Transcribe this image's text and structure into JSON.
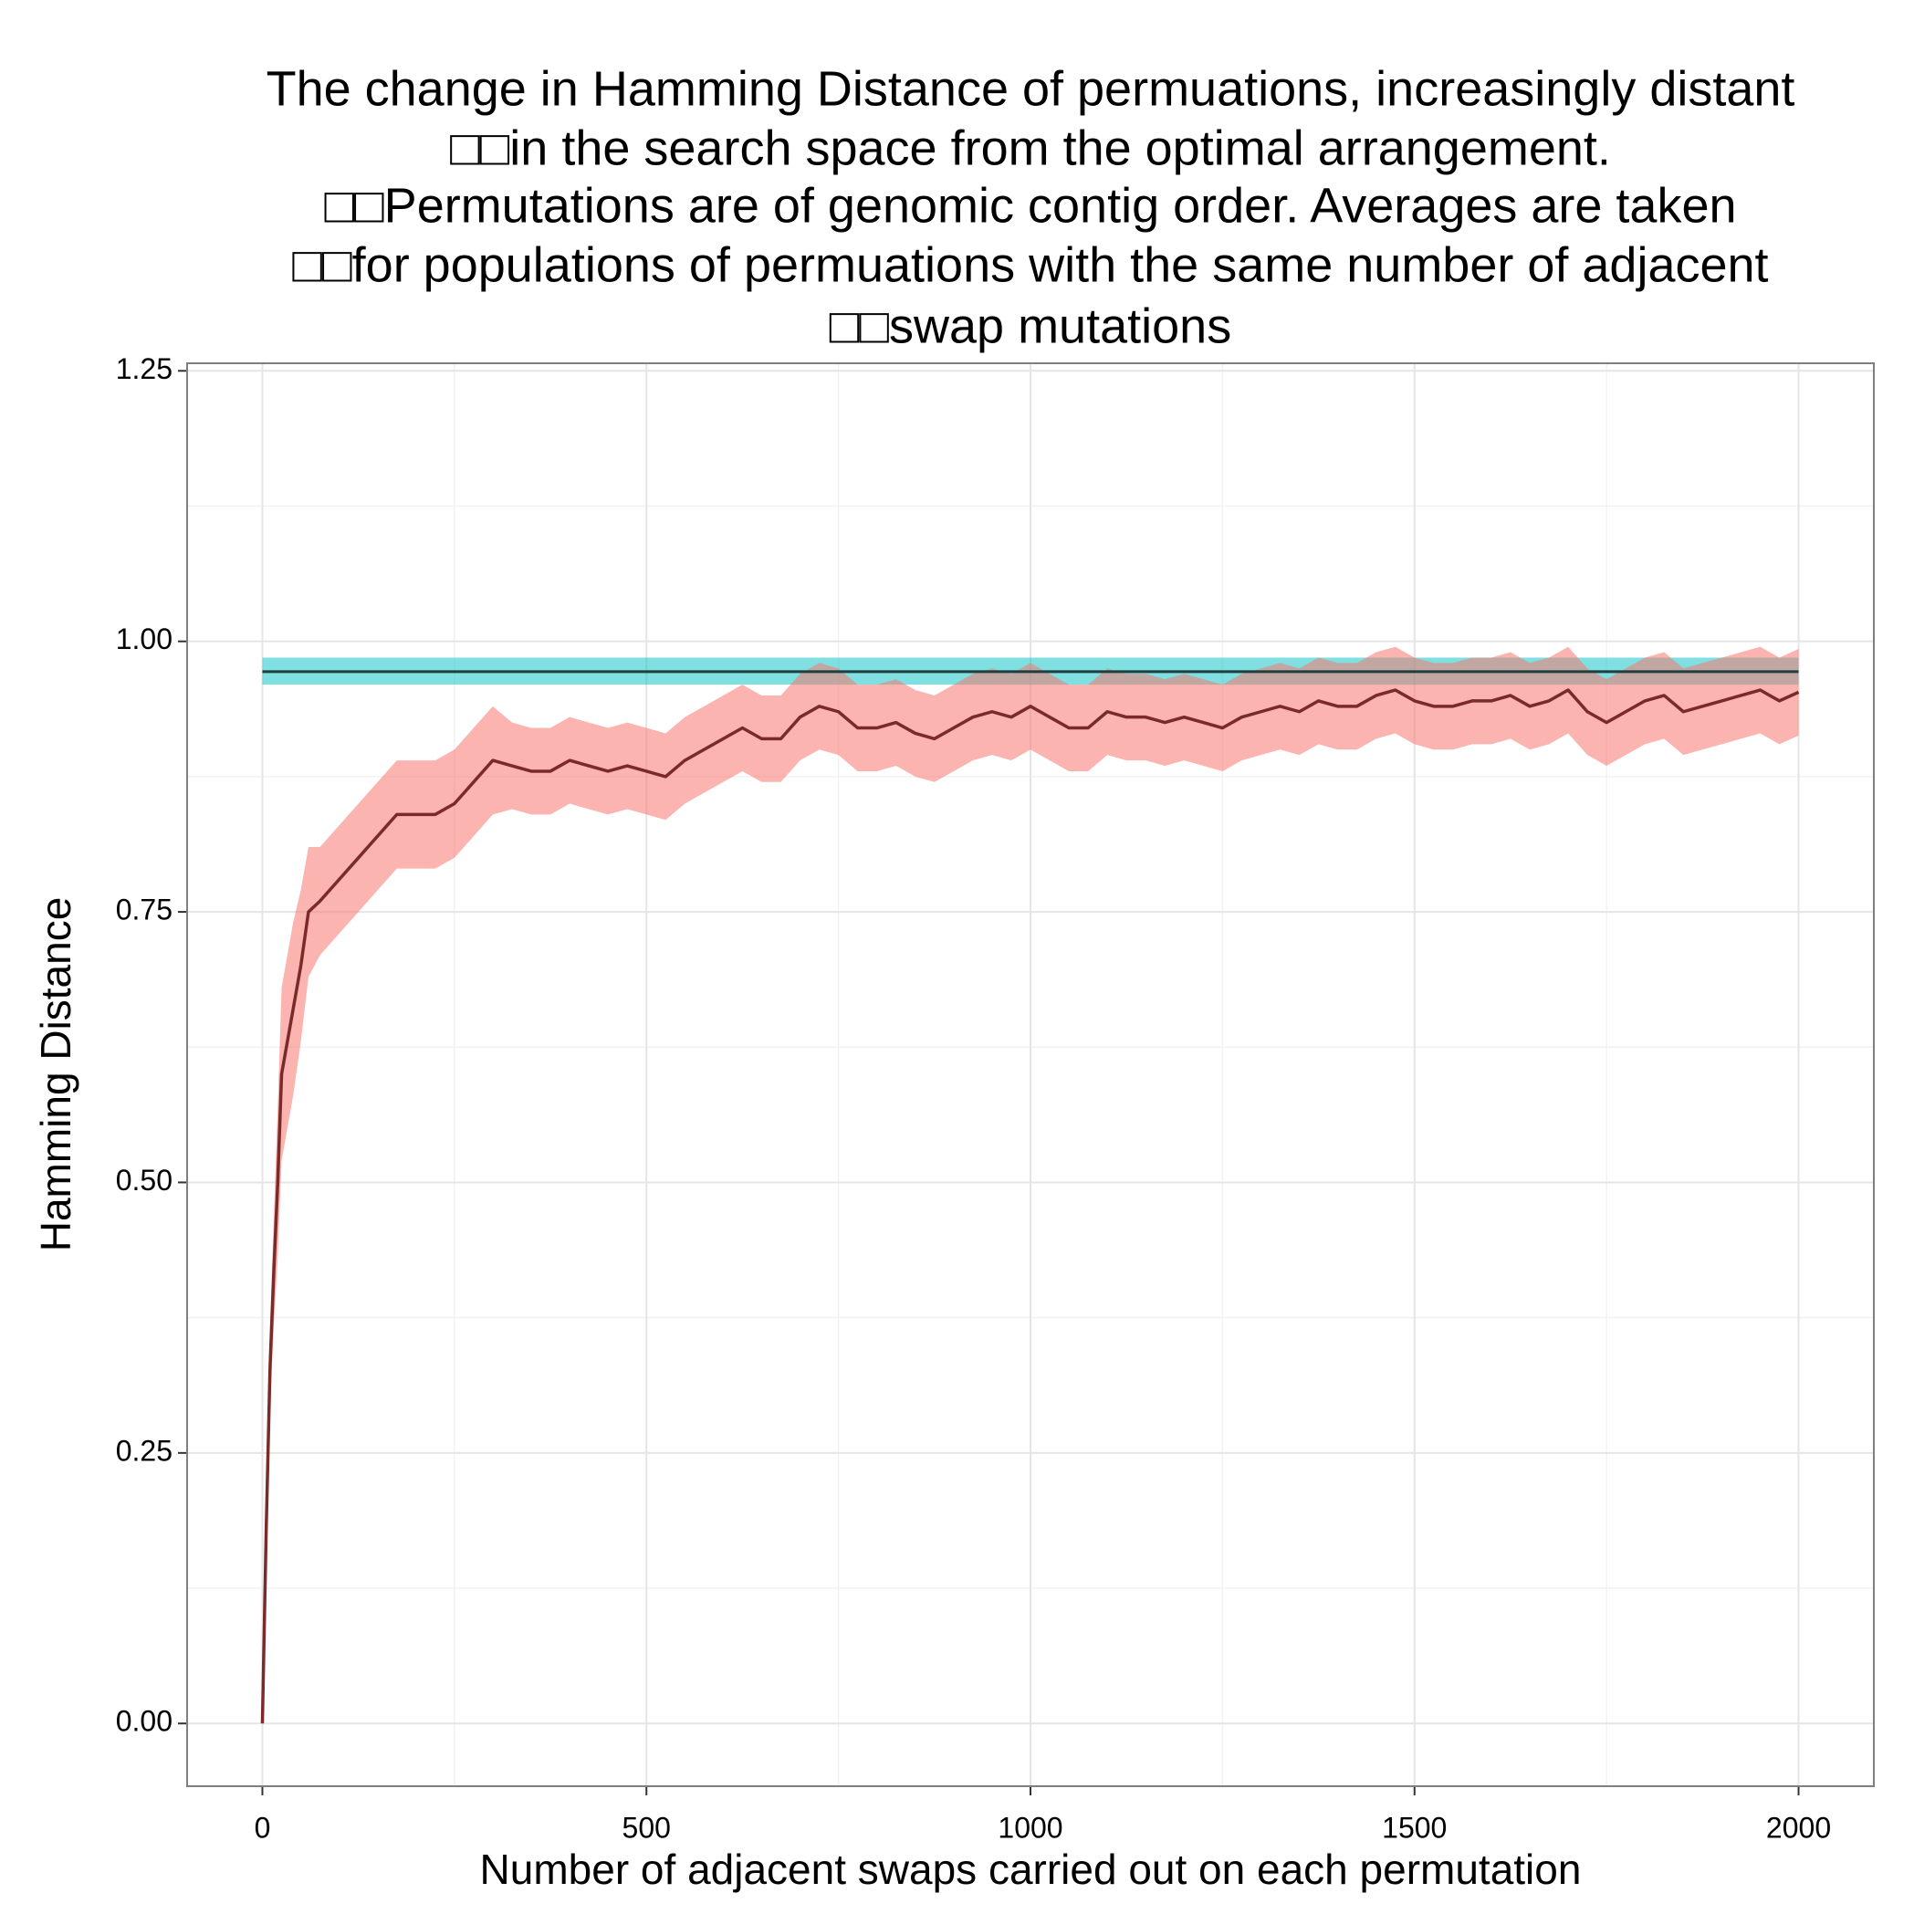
{
  "chart_data": {
    "type": "line",
    "title": [
      "The change in Hamming Distance of permuations, increasingly distant",
      "□□in the search space from the optimal arrangement.",
      "□□Permutations are of genomic contig order. Averages are taken",
      "□□for populations of permuations with the same number of adjacent",
      "□□swap mutations"
    ],
    "x_label": "Number of adjacent swaps carried out on each permutation",
    "y_label": "Hamming Distance",
    "xlim": [
      -98,
      2098
    ],
    "ylim": [
      -0.058,
      1.257
    ],
    "xticks": [
      0,
      500,
      1000,
      1500,
      2000
    ],
    "yticks": [
      {
        "value": 0,
        "label": "0.00"
      },
      {
        "value": 0.25,
        "label": "0.25"
      },
      {
        "value": 0.5,
        "label": "0.50"
      },
      {
        "value": 0.75,
        "label": "0.75"
      },
      {
        "value": 1,
        "label": "1.00"
      },
      {
        "value": 1.25,
        "label": "1.25"
      }
    ],
    "grid": true,
    "x": [
      0,
      5,
      10,
      15,
      20,
      25,
      30,
      40,
      50,
      60,
      75,
      100,
      125,
      150,
      175,
      200,
      225,
      250,
      275,
      300,
      325,
      350,
      375,
      400,
      425,
      450,
      475,
      500,
      525,
      550,
      575,
      600,
      625,
      650,
      675,
      700,
      725,
      750,
      775,
      800,
      825,
      850,
      875,
      900,
      925,
      950,
      975,
      1000,
      1025,
      1050,
      1075,
      1100,
      1125,
      1150,
      1175,
      1200,
      1225,
      1250,
      1275,
      1300,
      1325,
      1350,
      1375,
      1400,
      1425,
      1450,
      1475,
      1500,
      1525,
      1550,
      1575,
      1600,
      1625,
      1650,
      1675,
      1700,
      1725,
      1750,
      1775,
      1800,
      1825,
      1850,
      1875,
      1900,
      1925,
      1950,
      1975,
      2000
    ],
    "series": [
      {
        "color": "#7b2a2a",
        "band_color": "#f8766d",
        "values": [
          0,
          0.18,
          0.33,
          0.42,
          0.5,
          0.6,
          0.62,
          0.66,
          0.7,
          0.75,
          0.76,
          0.78,
          0.8,
          0.82,
          0.84,
          0.84,
          0.84,
          0.85,
          0.87,
          0.89,
          0.885,
          0.88,
          0.88,
          0.89,
          0.885,
          0.88,
          0.885,
          0.88,
          0.875,
          0.89,
          0.9,
          0.91,
          0.92,
          0.91,
          0.91,
          0.93,
          0.94,
          0.935,
          0.92,
          0.92,
          0.925,
          0.915,
          0.91,
          0.92,
          0.93,
          0.935,
          0.93,
          0.94,
          0.93,
          0.92,
          0.92,
          0.935,
          0.93,
          0.93,
          0.925,
          0.93,
          0.925,
          0.92,
          0.93,
          0.935,
          0.94,
          0.935,
          0.945,
          0.94,
          0.94,
          0.95,
          0.955,
          0.945,
          0.94,
          0.94,
          0.945,
          0.945,
          0.95,
          0.94,
          0.945,
          0.955,
          0.935,
          0.925,
          0.935,
          0.945,
          0.95,
          0.935,
          0.94,
          0.945,
          0.95,
          0.955,
          0.945,
          0.953
        ],
        "lower": [
          0,
          0.16,
          0.29,
          0.37,
          0.43,
          0.52,
          0.54,
          0.58,
          0.63,
          0.69,
          0.71,
          0.73,
          0.75,
          0.77,
          0.79,
          0.79,
          0.79,
          0.8,
          0.82,
          0.84,
          0.845,
          0.84,
          0.84,
          0.85,
          0.845,
          0.84,
          0.845,
          0.84,
          0.835,
          0.85,
          0.86,
          0.87,
          0.88,
          0.87,
          0.87,
          0.89,
          0.9,
          0.895,
          0.88,
          0.88,
          0.885,
          0.875,
          0.87,
          0.88,
          0.89,
          0.895,
          0.89,
          0.9,
          0.89,
          0.88,
          0.88,
          0.895,
          0.89,
          0.89,
          0.885,
          0.89,
          0.885,
          0.88,
          0.89,
          0.895,
          0.9,
          0.895,
          0.905,
          0.9,
          0.9,
          0.91,
          0.915,
          0.905,
          0.9,
          0.9,
          0.905,
          0.905,
          0.91,
          0.9,
          0.905,
          0.915,
          0.895,
          0.885,
          0.895,
          0.905,
          0.91,
          0.895,
          0.9,
          0.905,
          0.91,
          0.915,
          0.905,
          0.913
        ],
        "upper": [
          0,
          0.2,
          0.37,
          0.47,
          0.57,
          0.68,
          0.7,
          0.74,
          0.77,
          0.81,
          0.81,
          0.83,
          0.85,
          0.87,
          0.89,
          0.89,
          0.89,
          0.9,
          0.92,
          0.94,
          0.925,
          0.92,
          0.92,
          0.93,
          0.925,
          0.92,
          0.925,
          0.92,
          0.915,
          0.93,
          0.94,
          0.95,
          0.96,
          0.95,
          0.95,
          0.97,
          0.98,
          0.975,
          0.96,
          0.96,
          0.965,
          0.955,
          0.95,
          0.96,
          0.97,
          0.975,
          0.97,
          0.98,
          0.97,
          0.96,
          0.96,
          0.975,
          0.97,
          0.97,
          0.965,
          0.97,
          0.965,
          0.96,
          0.97,
          0.975,
          0.98,
          0.975,
          0.985,
          0.98,
          0.98,
          0.99,
          0.995,
          0.985,
          0.98,
          0.98,
          0.985,
          0.985,
          0.99,
          0.98,
          0.985,
          0.995,
          0.975,
          0.965,
          0.975,
          0.985,
          0.99,
          0.975,
          0.98,
          0.985,
          0.99,
          0.995,
          0.985,
          0.993
        ]
      }
    ],
    "reference": {
      "value": 0.972,
      "lower": 0.96,
      "upper": 0.985,
      "color": "#1f3f3f",
      "band_color": "#00bfc4"
    }
  }
}
